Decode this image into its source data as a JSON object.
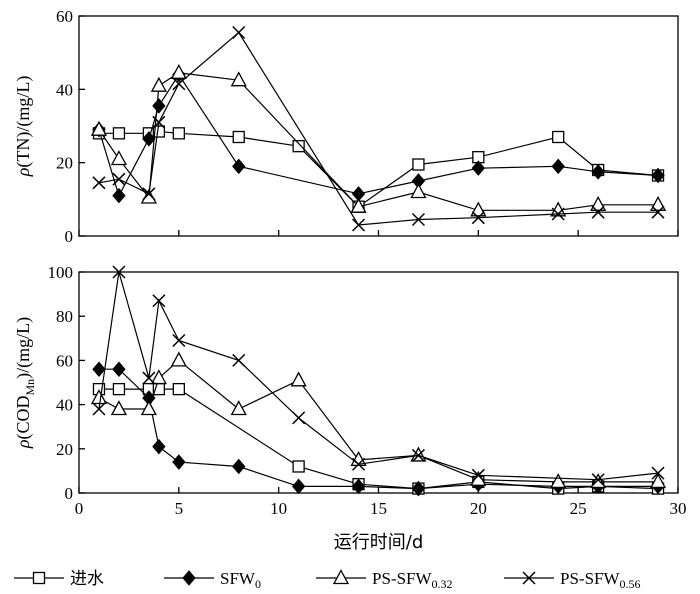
{
  "chart_data": {
    "type": "line",
    "xlabel": "运行时间/d",
    "xlim": [
      0,
      30
    ],
    "xticks": [
      "0",
      "5",
      "10",
      "15",
      "20",
      "25",
      "30"
    ],
    "legend": {
      "placement": "bottom",
      "entries": [
        {
          "main": "进水",
          "sub": ""
        },
        {
          "main": "SFW",
          "sub": "0"
        },
        {
          "main": "PS-SFW",
          "sub": "0.32"
        },
        {
          "main": "PS-SFW",
          "sub": "0.56"
        }
      ]
    },
    "panels": [
      {
        "ylabel": {
          "pre": "ρ",
          "main": "(TN)/(mg/L)",
          "sub": ""
        },
        "ylim": [
          0,
          60
        ],
        "yticks": [
          "0",
          "20",
          "40",
          "60"
        ],
        "series": [
          {
            "marker": "square",
            "x": [
              1,
              2,
              3.5,
              4,
              5,
              8,
              11,
              14,
              17,
              20,
              24,
              26,
              29
            ],
            "y": [
              28,
              28,
              28,
              28.5,
              28,
              27,
              24.5,
              8,
              19.5,
              21.5,
              27,
              18,
              16.5
            ]
          },
          {
            "marker": "diamond",
            "x": [
              1,
              2,
              3.5,
              4,
              5,
              8,
              14,
              17,
              20,
              24,
              26,
              29
            ],
            "y": [
              29,
              11,
              26.5,
              35.5,
              44,
              19,
              11.5,
              15,
              18.5,
              19,
              17.5,
              16.5
            ]
          },
          {
            "marker": "triangle",
            "x": [
              1,
              2,
              3.5,
              4,
              5,
              8,
              14,
              17,
              20,
              24,
              26,
              29
            ],
            "y": [
              29,
              21,
              10.5,
              41,
              44.5,
              42.5,
              8,
              12,
              7,
              7,
              8.5,
              8.5
            ]
          },
          {
            "marker": "cross",
            "x": [
              1,
              2,
              3.5,
              4,
              5,
              8,
              14,
              17,
              20,
              24,
              26,
              29
            ],
            "y": [
              14.5,
              15.5,
              11.5,
              31,
              41.5,
              55.5,
              3,
              4.5,
              5,
              6,
              6.5,
              6.5
            ]
          }
        ]
      },
      {
        "ylabel": {
          "pre": "ρ",
          "main": "(COD",
          "sub": "Mn",
          "post": ")/(mg/L)"
        },
        "ylim": [
          0,
          100
        ],
        "yticks": [
          "0",
          "20",
          "40",
          "60",
          "80",
          "100"
        ],
        "series": [
          {
            "marker": "square",
            "x": [
              1,
              2,
              3.5,
              4,
              5,
              11,
              14,
              17,
              20,
              24,
              26,
              29
            ],
            "y": [
              47,
              47,
              47,
              47,
              47,
              12,
              4,
              2,
              5,
              2,
              3,
              2
            ]
          },
          {
            "marker": "diamond",
            "x": [
              1,
              2,
              3.5,
              4,
              5,
              8,
              11,
              14,
              17,
              20,
              24,
              26,
              29
            ],
            "y": [
              56,
              56,
              43,
              21,
              14,
              12,
              3,
              3,
              2,
              4,
              3,
              3,
              3
            ]
          },
          {
            "marker": "triangle",
            "x": [
              1,
              2,
              3.5,
              4,
              5,
              8,
              11,
              14,
              17,
              20,
              24,
              26,
              29
            ],
            "y": [
              43,
              38,
              38,
              52,
              60,
              38,
              51,
              15,
              17,
              6,
              5,
              5,
              5
            ]
          },
          {
            "marker": "cross",
            "x": [
              1,
              2,
              3.5,
              4,
              5,
              8,
              11,
              14,
              17,
              20,
              26,
              29
            ],
            "y": [
              38,
              100,
              52,
              87,
              69,
              60,
              34,
              13,
              17,
              8,
              6,
              9
            ]
          }
        ]
      }
    ]
  }
}
